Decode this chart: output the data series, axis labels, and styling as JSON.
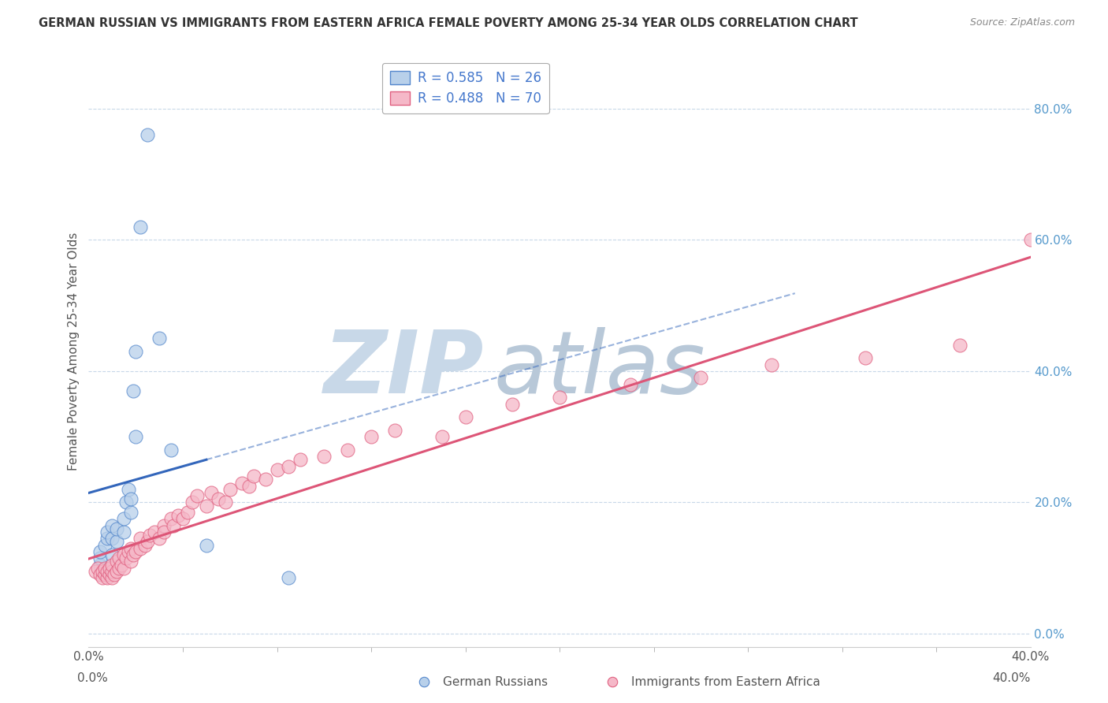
{
  "title": "GERMAN RUSSIAN VS IMMIGRANTS FROM EASTERN AFRICA FEMALE POVERTY AMONG 25-34 YEAR OLDS CORRELATION CHART",
  "source": "Source: ZipAtlas.com",
  "ylabel": "Female Poverty Among 25-34 Year Olds",
  "xlim": [
    0.0,
    0.4
  ],
  "ylim": [
    -0.02,
    0.88
  ],
  "yticks_right": [
    0.0,
    0.2,
    0.4,
    0.6,
    0.8
  ],
  "blue_R": 0.585,
  "blue_N": 26,
  "pink_R": 0.488,
  "pink_N": 70,
  "blue_fill": "#b8d0ea",
  "pink_fill": "#f5b8c8",
  "blue_edge": "#5588cc",
  "pink_edge": "#e06080",
  "blue_line_color": "#3366bb",
  "pink_line_color": "#dd5577",
  "watermark_zip": "ZIP",
  "watermark_atlas": "atlas",
  "watermark_color_zip": "#c8d8e8",
  "watermark_color_atlas": "#c0ccd8",
  "blue_scatter_x": [
    0.005,
    0.005,
    0.005,
    0.007,
    0.008,
    0.008,
    0.01,
    0.01,
    0.01,
    0.012,
    0.012,
    0.015,
    0.015,
    0.016,
    0.017,
    0.018,
    0.018,
    0.019,
    0.02,
    0.02,
    0.022,
    0.025,
    0.03,
    0.035,
    0.05,
    0.085
  ],
  "blue_scatter_y": [
    0.105,
    0.115,
    0.125,
    0.135,
    0.145,
    0.155,
    0.12,
    0.145,
    0.165,
    0.14,
    0.16,
    0.155,
    0.175,
    0.2,
    0.22,
    0.185,
    0.205,
    0.37,
    0.3,
    0.43,
    0.62,
    0.76,
    0.45,
    0.28,
    0.135,
    0.085
  ],
  "pink_scatter_x": [
    0.003,
    0.004,
    0.005,
    0.006,
    0.006,
    0.007,
    0.007,
    0.008,
    0.008,
    0.009,
    0.009,
    0.01,
    0.01,
    0.01,
    0.011,
    0.012,
    0.012,
    0.013,
    0.013,
    0.014,
    0.015,
    0.015,
    0.016,
    0.017,
    0.018,
    0.018,
    0.019,
    0.02,
    0.022,
    0.022,
    0.024,
    0.025,
    0.026,
    0.028,
    0.03,
    0.032,
    0.032,
    0.035,
    0.036,
    0.038,
    0.04,
    0.042,
    0.044,
    0.046,
    0.05,
    0.052,
    0.055,
    0.058,
    0.06,
    0.065,
    0.068,
    0.07,
    0.075,
    0.08,
    0.085,
    0.09,
    0.1,
    0.11,
    0.12,
    0.13,
    0.15,
    0.16,
    0.18,
    0.2,
    0.23,
    0.26,
    0.29,
    0.33,
    0.37,
    0.4
  ],
  "pink_scatter_y": [
    0.095,
    0.1,
    0.09,
    0.085,
    0.095,
    0.09,
    0.1,
    0.085,
    0.095,
    0.09,
    0.1,
    0.085,
    0.095,
    0.105,
    0.09,
    0.095,
    0.11,
    0.1,
    0.115,
    0.105,
    0.1,
    0.12,
    0.115,
    0.125,
    0.11,
    0.13,
    0.12,
    0.125,
    0.13,
    0.145,
    0.135,
    0.14,
    0.15,
    0.155,
    0.145,
    0.165,
    0.155,
    0.175,
    0.165,
    0.18,
    0.175,
    0.185,
    0.2,
    0.21,
    0.195,
    0.215,
    0.205,
    0.2,
    0.22,
    0.23,
    0.225,
    0.24,
    0.235,
    0.25,
    0.255,
    0.265,
    0.27,
    0.28,
    0.3,
    0.31,
    0.3,
    0.33,
    0.35,
    0.36,
    0.38,
    0.39,
    0.41,
    0.42,
    0.44,
    0.6
  ]
}
